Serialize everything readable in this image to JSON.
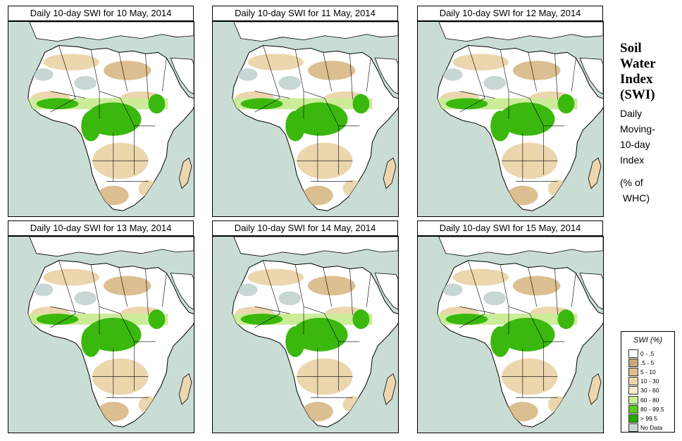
{
  "panels": [
    {
      "title": "Daily 10-day SWI for  10 May, 2014"
    },
    {
      "title": "Daily 10-day SWI for  11 May, 2014"
    },
    {
      "title": "Daily 10-day SWI for  12 May, 2014"
    },
    {
      "title": "Daily 10-day SWI for  13 May, 2014"
    },
    {
      "title": "Daily 10-day SWI for  14 May, 2014"
    },
    {
      "title": "Daily 10-day SWI for  15 May, 2014"
    }
  ],
  "side": {
    "title_lines": [
      "Soil",
      "Water",
      "Index",
      "(SWI)"
    ],
    "desc_lines": [
      "Daily",
      "Moving-",
      "10-day",
      "Index",
      "",
      "(% of",
      " WHC)"
    ]
  },
  "legend": {
    "title": "SWI (%)",
    "items": [
      {
        "label": "0 - .5",
        "color": "#ffffff"
      },
      {
        "label": ".5 - 5",
        "color": "#c8a87a"
      },
      {
        "label": "5 - 10",
        "color": "#dcbf90"
      },
      {
        "label": "10 - 30",
        "color": "#ecd6ae"
      },
      {
        "label": "30 - 60",
        "color": "#f6ebcf"
      },
      {
        "label": "60 - 80",
        "color": "#ccec9a"
      },
      {
        "label": "80 - 99.5",
        "color": "#5bc81a"
      },
      {
        "label": "> 99.5",
        "color": "#23a800"
      },
      {
        "label": "No Data",
        "color": "#c8d6d4"
      }
    ]
  },
  "colors": {
    "sea": "#c9ddd5",
    "land": "#ffffff",
    "sandy": "#dcbf90",
    "tan": "#ecd6ae",
    "green": "#3bb80e",
    "light_green": "#ccec9a",
    "nodata": "#c8d6d4"
  }
}
